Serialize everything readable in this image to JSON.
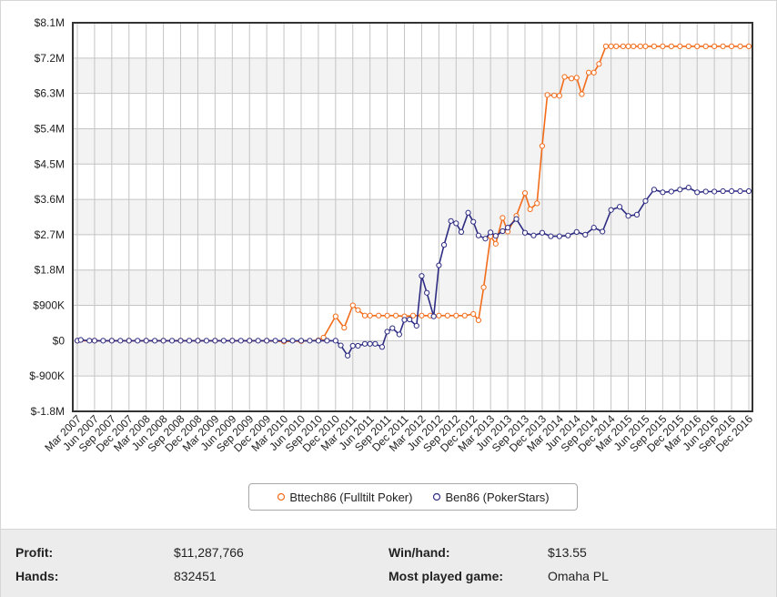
{
  "chart_data": {
    "type": "line",
    "y_ticks": [
      "$8.1M",
      "$7.2M",
      "$6.3M",
      "$5.4M",
      "$4.5M",
      "$3.6M",
      "$2.7M",
      "$1.8M",
      "$900K",
      "$0",
      "$-900K",
      "$-1.8M"
    ],
    "ylim": [
      -1800000,
      8100000
    ],
    "x_ticks": [
      "Mar 2007",
      "Jun 2007",
      "Sep 2007",
      "Dec 2007",
      "Mar 2008",
      "Jun 2008",
      "Sep 2008",
      "Dec 2008",
      "Mar 2009",
      "Jun 2009",
      "Sep 2009",
      "Dec 2009",
      "Mar 2010",
      "Jun 2010",
      "Sep 2010",
      "Dec 2010",
      "Mar 2011",
      "Jun 2011",
      "Sep 2011",
      "Dec 2011",
      "Mar 2012",
      "Jun 2012",
      "Sep 2012",
      "Dec 2012",
      "Mar 2013",
      "Jun 2013",
      "Sep 2013",
      "Dec 2013",
      "Mar 2014",
      "Jun 2014",
      "Sep 2014",
      "Dec 2014",
      "Mar 2015",
      "Jun 2015",
      "Sep 2015",
      "Dec 2015",
      "Mar 2016",
      "Jun 2016",
      "Sep 2016",
      "Dec 2016"
    ],
    "grid": true,
    "legend_position": "bottom-center",
    "series": [
      {
        "name": "Bttech86 (Fulltilt Poker)",
        "color": "#f26c1a",
        "x": [
          0,
          1,
          2,
          3,
          4,
          5,
          6,
          7,
          8,
          9,
          10,
          11,
          12,
          13,
          14,
          14.3,
          15,
          15.5,
          16,
          16.3,
          16.7,
          17,
          17.5,
          18,
          18.5,
          19,
          19.5,
          20,
          20.5,
          21,
          21.5,
          22,
          22.5,
          23,
          23.3,
          23.6,
          24,
          24.3,
          24.7,
          25,
          25.5,
          26,
          26.3,
          26.7,
          27,
          27.3,
          27.7,
          28,
          28.3,
          28.7,
          29,
          29.3,
          29.7,
          30,
          30.3,
          30.7,
          31,
          31.3,
          31.7,
          32,
          32.3,
          32.7,
          33,
          33.5,
          34,
          34.5,
          35,
          35.5,
          36,
          36.5,
          37,
          37.5,
          38,
          38.5,
          39
        ],
        "values": [
          0,
          0,
          0,
          0,
          0,
          0,
          0,
          0,
          0,
          0,
          0,
          0,
          -20000,
          -10000,
          10000,
          80000,
          620000,
          330000,
          900000,
          780000,
          640000,
          640000,
          640000,
          640000,
          640000,
          620000,
          640000,
          640000,
          640000,
          640000,
          640000,
          640000,
          640000,
          680000,
          520000,
          1360000,
          2660000,
          2470000,
          3130000,
          2780000,
          3180000,
          3760000,
          3350000,
          3500000,
          4960000,
          6260000,
          6250000,
          6240000,
          6720000,
          6680000,
          6700000,
          6280000,
          6830000,
          6830000,
          7050000,
          7500000,
          7500000,
          7500000,
          7500000,
          7500000,
          7500000,
          7500000,
          7500000,
          7500000,
          7500000,
          7500000,
          7500000,
          7500000,
          7500000,
          7500000,
          7500000,
          7500000,
          7500000,
          7500000,
          7500000
        ]
      },
      {
        "name": "Ben86 (PokerStars)",
        "color": "#2e2c82",
        "x": [
          0,
          0.2,
          0.7,
          1,
          1.5,
          2,
          2.5,
          3,
          3.5,
          4,
          4.5,
          5,
          5.5,
          6,
          6.5,
          7,
          7.5,
          8,
          8.5,
          9,
          9.5,
          10,
          10.5,
          11,
          11.5,
          12,
          12.5,
          13,
          13.5,
          14,
          14.5,
          15,
          15.3,
          15.7,
          16,
          16.3,
          16.7,
          17,
          17.3,
          17.7,
          18,
          18.3,
          18.7,
          19,
          19.3,
          19.7,
          20,
          20.3,
          20.7,
          21,
          21.3,
          21.7,
          22,
          22.3,
          22.7,
          23,
          23.3,
          23.7,
          24,
          24.3,
          24.7,
          25,
          25.5,
          26,
          26.5,
          27,
          27.5,
          28,
          28.5,
          29,
          29.5,
          30,
          30.5,
          31,
          31.5,
          32,
          32.5,
          33,
          33.5,
          34,
          34.5,
          35,
          35.5,
          36,
          36.5,
          37,
          37.5,
          38,
          38.5,
          39
        ],
        "values": [
          0,
          20000,
          0,
          0,
          0,
          0,
          0,
          0,
          0,
          0,
          0,
          0,
          0,
          0,
          0,
          0,
          0,
          0,
          0,
          0,
          0,
          0,
          0,
          0,
          0,
          0,
          0,
          0,
          0,
          0,
          0,
          0,
          -120000,
          -380000,
          -130000,
          -130000,
          -80000,
          -80000,
          -80000,
          -160000,
          230000,
          320000,
          160000,
          530000,
          540000,
          380000,
          1650000,
          1220000,
          620000,
          1920000,
          2440000,
          3050000,
          2990000,
          2770000,
          3260000,
          3030000,
          2680000,
          2600000,
          2760000,
          2670000,
          2790000,
          2880000,
          3100000,
          2750000,
          2680000,
          2750000,
          2660000,
          2660000,
          2680000,
          2770000,
          2700000,
          2880000,
          2780000,
          3330000,
          3410000,
          3180000,
          3210000,
          3560000,
          3850000,
          3780000,
          3800000,
          3850000,
          3900000,
          3780000,
          3800000,
          3800000,
          3810000,
          3810000,
          3810000,
          3810000
        ]
      }
    ]
  },
  "stats": {
    "profit_label": "Profit:",
    "profit_value": "$11,287,766",
    "hands_label": "Hands:",
    "hands_value": "832451",
    "winhand_label": "Win/hand:",
    "winhand_value": "$13.55",
    "game_label": "Most played game:",
    "game_value": "Omaha PL"
  }
}
